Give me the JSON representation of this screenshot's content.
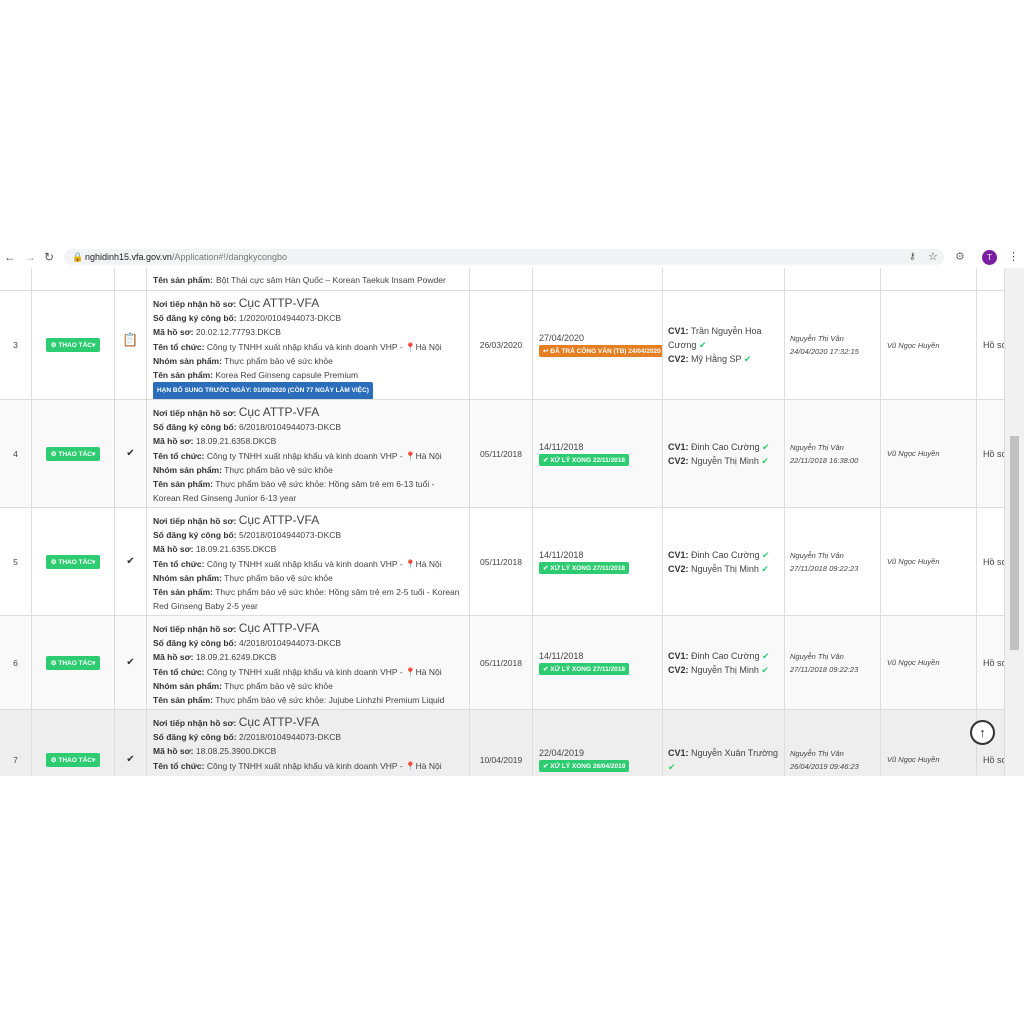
{
  "browser": {
    "url_host": "nghidinh15.vfa.gov.vn",
    "url_path": "/Application#!/dangkycongbo",
    "profile": "T"
  },
  "table": {
    "top_row": {
      "label": "Tên sản phẩm:",
      "value": "Bột Thái cực sâm Hàn Quốc – Korean Taekuk Insam Powder"
    },
    "rows": [
      {
        "index": "3",
        "action": "THAO TÁC",
        "marker": "document",
        "fields": [
          {
            "label": "Nơi tiếp nhận hồ sơ:",
            "value": "Cục ATTP-VFA"
          },
          {
            "label": "Số đăng ký công bố:",
            "value": "1/2020/0104944073-DKCB"
          },
          {
            "label": "Mã hồ sơ:",
            "value": "20.02.12.77793.DKCB"
          },
          {
            "label": "Tên tổ chức:",
            "value": "Công ty TNHH xuất nhập khẩu và kinh doanh VHP -",
            "place": "Hà Nội"
          },
          {
            "label": "Nhóm sản phẩm:",
            "value": "Thực phẩm bảo vệ sức khỏe"
          },
          {
            "label": "Tên sản phẩm:",
            "value": "Korea Red Ginseng capsule Premium"
          }
        ],
        "deadline": "HẠN BỔ SUNG TRƯỚC NGÀY: 01/09/2020 (CÒN 77 NGÀY LÀM VIỆC)",
        "received": "26/03/2020",
        "due": "27/04/2020",
        "status": "ĐÃ TRẢ CÔNG VĂN (TB) 24/04/2020",
        "status_kind": "returned",
        "cv": [
          {
            "label": "CV1:",
            "name": "Trần Nguyễn Hoa Cương"
          },
          {
            "label": "CV2:",
            "name": "Mỹ Hằng SP"
          }
        ],
        "processor": "Nguyễn Thị Vân",
        "processed_at": "24/04/2020 17:32:15",
        "reviewer": "Vũ Ngọc Huyền",
        "note": "Hồ sơ"
      },
      {
        "index": "4",
        "action": "THAO TÁC",
        "marker": "check",
        "fields": [
          {
            "label": "Nơi tiếp nhận hồ sơ:",
            "value": "Cục ATTP-VFA"
          },
          {
            "label": "Số đăng ký công bố:",
            "value": "6/2018/0104944073-DKCB"
          },
          {
            "label": "Mã hồ sơ:",
            "value": "18.09.21.6358.DKCB"
          },
          {
            "label": "Tên tổ chức:",
            "value": "Công ty TNHH xuất nhập khẩu và kinh doanh VHP -",
            "place": "Hà Nội"
          },
          {
            "label": "Nhóm sản phẩm:",
            "value": "Thực phẩm bảo vệ sức khỏe"
          },
          {
            "label": "Tên sản phẩm:",
            "value": "Thực phẩm bảo vệ sức khỏe: Hồng sâm trẻ em 6-13 tuổi - Korean Red Ginseng Junior 6-13 year"
          }
        ],
        "received": "05/11/2018",
        "due": "14/11/2018",
        "status": "XỬ LÝ XONG 22/11/2018",
        "status_kind": "done",
        "cv": [
          {
            "label": "CV1:",
            "name": "Đinh Cao Cường"
          },
          {
            "label": "CV2:",
            "name": "Nguyễn Thị Minh"
          }
        ],
        "processor": "Nguyễn Thị Vân",
        "processed_at": "22/11/2018 16:38:00",
        "reviewer": "Vũ Ngọc Huyền",
        "note": "Hồ sơ"
      },
      {
        "index": "5",
        "action": "THAO TÁC",
        "marker": "check",
        "fields": [
          {
            "label": "Nơi tiếp nhận hồ sơ:",
            "value": "Cục ATTP-VFA"
          },
          {
            "label": "Số đăng ký công bố:",
            "value": "5/2018/0104944073-DKCB"
          },
          {
            "label": "Mã hồ sơ:",
            "value": "18.09.21.6355.DKCB"
          },
          {
            "label": "Tên tổ chức:",
            "value": "Công ty TNHH xuất nhập khẩu và kinh doanh VHP -",
            "place": "Hà Nội"
          },
          {
            "label": "Nhóm sản phẩm:",
            "value": "Thực phẩm bảo vệ sức khỏe"
          },
          {
            "label": "Tên sản phẩm:",
            "value": "Thực phẩm bảo vệ sức khỏe: Hồng sâm trẻ em 2-5 tuổi - Korean Red Ginseng Baby 2-5 year"
          }
        ],
        "received": "05/11/2018",
        "due": "14/11/2018",
        "status": "XỬ LÝ XONG 27/11/2018",
        "status_kind": "done",
        "cv": [
          {
            "label": "CV1:",
            "name": "Đinh Cao Cường"
          },
          {
            "label": "CV2:",
            "name": "Nguyễn Thị Minh"
          }
        ],
        "processor": "Nguyễn Thị Vân",
        "processed_at": "27/11/2018 09:22:23",
        "reviewer": "Vũ Ngọc Huyền",
        "note": "Hồ sơ"
      },
      {
        "index": "6",
        "action": "THAO TÁC",
        "marker": "check",
        "fields": [
          {
            "label": "Nơi tiếp nhận hồ sơ:",
            "value": "Cục ATTP-VFA"
          },
          {
            "label": "Số đăng ký công bố:",
            "value": "4/2018/0104944073-DKCB"
          },
          {
            "label": "Mã hồ sơ:",
            "value": "18.09.21.6249.DKCB"
          },
          {
            "label": "Tên tổ chức:",
            "value": "Công ty TNHH xuất nhập khẩu và kinh doanh VHP -",
            "place": "Hà Nội"
          },
          {
            "label": "Nhóm sản phẩm:",
            "value": "Thực phẩm bảo vệ sức khỏe"
          },
          {
            "label": "Tên sản phẩm:",
            "value": "Thực phẩm bảo vệ sức khỏe: Jujube Linhzhi Premium Liquid"
          }
        ],
        "received": "05/11/2018",
        "due": "14/11/2018",
        "status": "XỬ LÝ XONG 27/11/2018",
        "status_kind": "done",
        "cv": [
          {
            "label": "CV1:",
            "name": "Đinh Cao Cường"
          },
          {
            "label": "CV2:",
            "name": "Nguyễn Thị Minh"
          }
        ],
        "processor": "Nguyễn Thị Vân",
        "processed_at": "27/11/2018 09:22:23",
        "reviewer": "Vũ Ngọc Huyền",
        "note": "Hồ sơ"
      },
      {
        "index": "7",
        "action": "THAO TÁC",
        "marker": "check",
        "fields": [
          {
            "label": "Nơi tiếp nhận hồ sơ:",
            "value": "Cục ATTP-VFA"
          },
          {
            "label": "Số đăng ký công bố:",
            "value": "2/2018/0104944073-DKCB"
          },
          {
            "label": "Mã hồ sơ:",
            "value": "18.08.25.3900.DKCB"
          },
          {
            "label": "Tên tổ chức:",
            "value": "Công ty TNHH xuất nhập khẩu và kinh doanh VHP -",
            "place": "Hà Nội"
          }
        ],
        "received": "10/04/2019",
        "due": "22/04/2019",
        "status": "XỬ LÝ XONG 26/04/2019",
        "status_kind": "done",
        "cv": [
          {
            "label": "CV1:",
            "name": "Nguyễn Xuân Trường"
          }
        ],
        "processor": "Nguyễn Thị Vân",
        "processed_at": "26/04/2019 09:46:23",
        "reviewer": "Vũ Ngọc Huyền",
        "note": "Hồ sơ"
      }
    ]
  }
}
